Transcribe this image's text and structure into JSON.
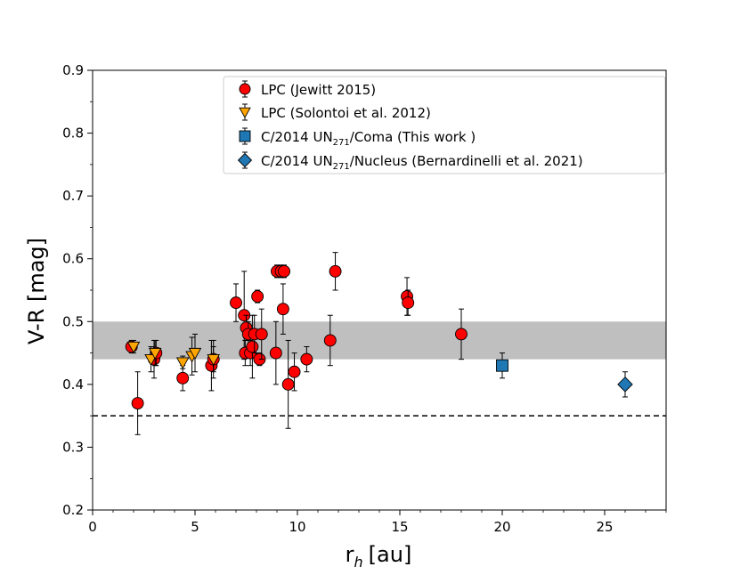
{
  "chart_data": {
    "type": "scatter",
    "xlabel": "r",
    "xlabel_sub": "h",
    "xlabel_unit": "[au]",
    "ylabel": "V-R [mag]",
    "xlim": [
      0,
      28
    ],
    "ylim": [
      0.2,
      0.9
    ],
    "xticks": [
      0,
      5,
      10,
      15,
      20,
      25
    ],
    "yticks": [
      0.2,
      0.3,
      0.4,
      0.5,
      0.6,
      0.7,
      0.8,
      0.9
    ],
    "xtick_labels": [
      "0",
      "5",
      "10",
      "15",
      "20",
      "25"
    ],
    "ytick_labels": [
      "0.2",
      "0.3",
      "0.4",
      "0.5",
      "0.6",
      "0.7",
      "0.8",
      "0.9"
    ],
    "shaded_band": {
      "y0": 0.44,
      "y1": 0.5,
      "color": "#bfbfbf"
    },
    "reference_line": {
      "y": 0.35,
      "style": "dashed"
    },
    "legend_position": "top-center",
    "series": [
      {
        "name": "LPC (Jewitt 2015)",
        "legend_text": "LPC (Jewitt 2015)",
        "marker": "circle",
        "color": "#ff0000",
        "points": [
          {
            "x": 1.9,
            "y": 0.46,
            "err": 0.01
          },
          {
            "x": 2.2,
            "y": 0.37,
            "err": 0.05
          },
          {
            "x": 3.0,
            "y": 0.44,
            "err": 0.03
          },
          {
            "x": 3.1,
            "y": 0.45,
            "err": 0.02
          },
          {
            "x": 4.4,
            "y": 0.41,
            "err": 0.02
          },
          {
            "x": 5.8,
            "y": 0.43,
            "err": 0.04
          },
          {
            "x": 5.9,
            "y": 0.44,
            "err": 0.03
          },
          {
            "x": 7.0,
            "y": 0.53,
            "err": 0.03
          },
          {
            "x": 7.4,
            "y": 0.51,
            "err": 0.07
          },
          {
            "x": 7.45,
            "y": 0.45,
            "err": 0.02
          },
          {
            "x": 7.5,
            "y": 0.49,
            "err": 0.02
          },
          {
            "x": 7.6,
            "y": 0.48,
            "err": 0.02
          },
          {
            "x": 7.7,
            "y": 0.45,
            "err": 0.02
          },
          {
            "x": 7.8,
            "y": 0.46,
            "err": 0.05
          },
          {
            "x": 7.9,
            "y": 0.48,
            "err": 0.03
          },
          {
            "x": 8.05,
            "y": 0.54,
            "err": 0.01
          },
          {
            "x": 8.15,
            "y": 0.44,
            "err": 0.01
          },
          {
            "x": 8.25,
            "y": 0.48,
            "err": 0.04
          },
          {
            "x": 8.95,
            "y": 0.45,
            "err": 0.05
          },
          {
            "x": 9.0,
            "y": 0.58,
            "err": 0.01
          },
          {
            "x": 9.2,
            "y": 0.58,
            "err": 0.01
          },
          {
            "x": 9.35,
            "y": 0.58,
            "err": 0.01
          },
          {
            "x": 9.3,
            "y": 0.52,
            "err": 0.04
          },
          {
            "x": 9.55,
            "y": 0.4,
            "err": 0.07
          },
          {
            "x": 9.85,
            "y": 0.42,
            "err": 0.03
          },
          {
            "x": 10.45,
            "y": 0.44,
            "err": 0.02
          },
          {
            "x": 11.6,
            "y": 0.47,
            "err": 0.04
          },
          {
            "x": 11.85,
            "y": 0.58,
            "err": 0.03
          },
          {
            "x": 15.35,
            "y": 0.54,
            "err": 0.03
          },
          {
            "x": 15.4,
            "y": 0.53,
            "err": 0.02
          },
          {
            "x": 18.0,
            "y": 0.48,
            "err": 0.04
          }
        ]
      },
      {
        "name": "LPC (Solontoi et al. 2012)",
        "legend_text": "LPC (Solontoi et al. 2012)",
        "marker": "triangle-down",
        "color": "#ffa500",
        "points": [
          {
            "x": 2.0,
            "y": 0.46,
            "err": 0.01
          },
          {
            "x": 2.85,
            "y": 0.44,
            "err": 0.02
          },
          {
            "x": 3.05,
            "y": 0.45,
            "err": 0.02
          },
          {
            "x": 4.4,
            "y": 0.435,
            "err": 0.01
          },
          {
            "x": 4.85,
            "y": 0.445,
            "err": 0.03
          },
          {
            "x": 5.0,
            "y": 0.45,
            "err": 0.03
          },
          {
            "x": 5.9,
            "y": 0.44,
            "err": 0.02
          }
        ]
      },
      {
        "name": "C/2014 UN271/Coma (This work )",
        "legend_text_parts": [
          "C/2014 UN",
          "271",
          "/Coma (This work )"
        ],
        "marker": "square",
        "color": "#1f77b4",
        "points": [
          {
            "x": 20.0,
            "y": 0.43,
            "err": 0.02
          }
        ]
      },
      {
        "name": "C/2014 UN271/Nucleus (Bernardinelli et al. 2021)",
        "legend_text_parts": [
          "C/2014 UN",
          "271",
          "/Nucleus (Bernardinelli et al. 2021)"
        ],
        "marker": "diamond",
        "color": "#1f77b4",
        "points": [
          {
            "x": 26.0,
            "y": 0.4,
            "err": 0.02
          }
        ]
      }
    ]
  }
}
